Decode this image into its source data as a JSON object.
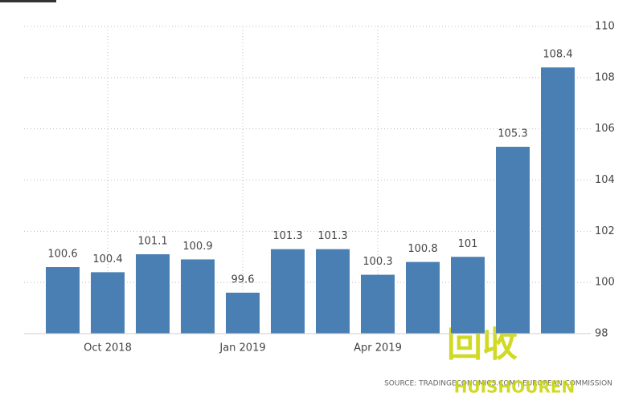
{
  "chart_data": {
    "type": "bar",
    "categories": [
      null,
      "Oct 2018",
      null,
      null,
      "Jan 2019",
      null,
      null,
      "Apr 2019",
      null,
      null,
      null,
      null
    ],
    "values": [
      100.6,
      100.4,
      101.1,
      100.9,
      99.6,
      101.3,
      101.3,
      100.3,
      100.8,
      101,
      105.3,
      108.4
    ],
    "color": "#4a7fb4",
    "ylim": [
      98,
      110
    ],
    "yticks": [
      98,
      100,
      102,
      104,
      106,
      108,
      110
    ],
    "grid": true,
    "source": "SOURCE: TRADINGECONOMICS.COM | EUROPEAN COMMISSION",
    "watermark": [
      "回收",
      "HUISHOUREN"
    ]
  }
}
